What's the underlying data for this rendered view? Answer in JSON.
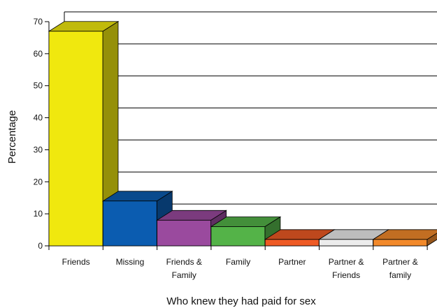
{
  "chart_data": {
    "type": "bar",
    "style": "3d",
    "title": "",
    "xlabel": "Who knew they had paid for sex",
    "ylabel": "Percentage",
    "ylim": [
      0,
      70
    ],
    "yticks": [
      0,
      10,
      20,
      30,
      40,
      50,
      60,
      70
    ],
    "grid": true,
    "legend": "none",
    "categories": [
      [
        "Friends"
      ],
      [
        "Missing"
      ],
      [
        "Friends &",
        "Family"
      ],
      [
        "Family"
      ],
      [
        "Partner"
      ],
      [
        "Partner &",
        "Friends"
      ],
      [
        "Partner &",
        "family"
      ]
    ],
    "values": [
      67,
      14,
      8,
      6,
      2,
      2,
      2
    ],
    "colors": [
      "#f0e80e",
      "#0b5cb0",
      "#9a4a9e",
      "#54b348",
      "#ee5a24",
      "#ececec",
      "#f2892a"
    ]
  }
}
